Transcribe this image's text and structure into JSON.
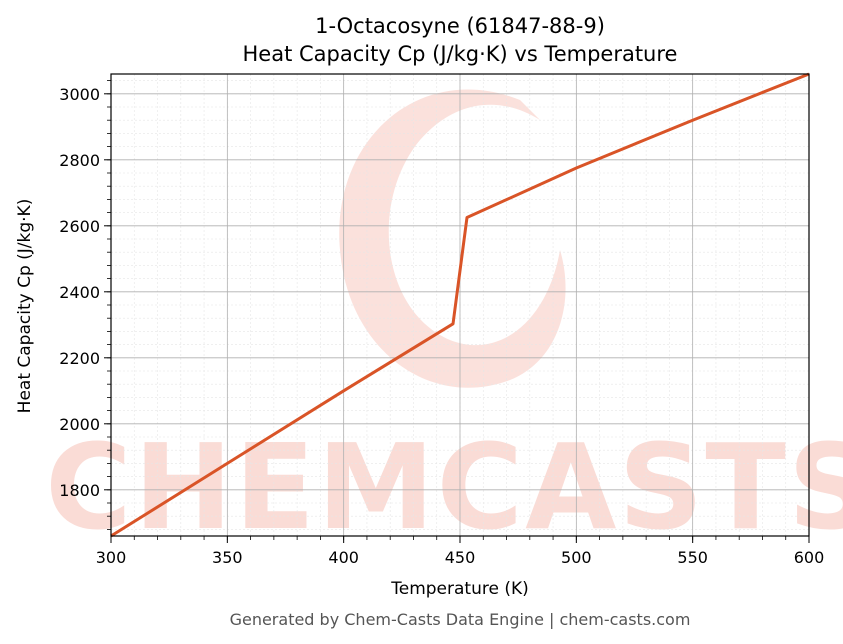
{
  "chart_data": {
    "type": "line",
    "title": "1-Octacosyne (61847-88-9)",
    "subtitle": "Heat Capacity Cp (J/kg·K) vs Temperature",
    "xlabel": "Temperature (K)",
    "ylabel": "Heat Capacity Cp (J/kg·K)",
    "xlim": [
      300,
      600
    ],
    "ylim": [
      1660,
      3060
    ],
    "xticks": [
      300,
      350,
      400,
      450,
      500,
      550,
      600
    ],
    "yticks": [
      1800,
      2000,
      2200,
      2400,
      2600,
      2800,
      3000
    ],
    "grid": true,
    "legend": "none",
    "series": [
      {
        "color": "#d95427",
        "x": [
          300,
          350,
          400,
          447,
          453,
          500,
          550,
          600
        ],
        "y": [
          1660,
          1880,
          2100,
          2303,
          2625,
          2775,
          2920,
          3060
        ]
      }
    ]
  },
  "footer": "Generated by Chem-Casts Data Engine | chem-casts.com",
  "watermark": {
    "text": "CHEMCASTS",
    "color": "#fadcd6"
  }
}
